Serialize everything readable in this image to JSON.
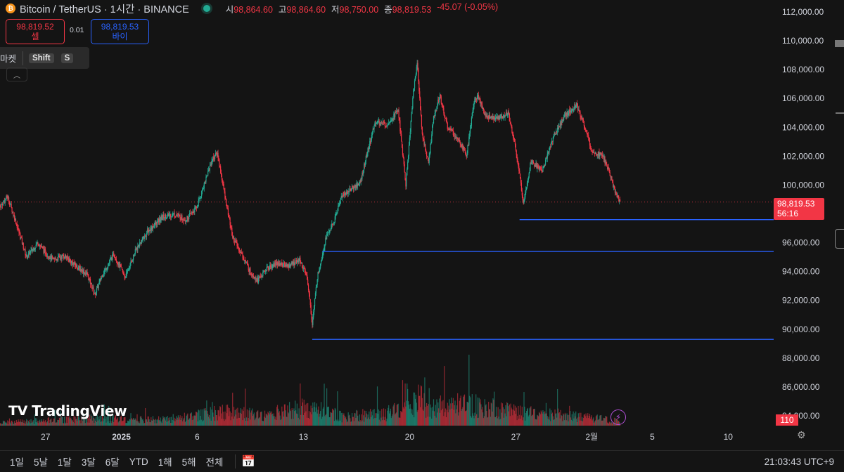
{
  "header": {
    "title": "Bitcoin / TetherUS · 1시간 · BINANCE",
    "coin_glyph": "₿",
    "ohlc": [
      {
        "label": "시",
        "value": "98,864.60"
      },
      {
        "label": "고",
        "value": "98,864.60"
      },
      {
        "label": "저",
        "value": "98,750.00"
      },
      {
        "label": "종",
        "value": "98,819.53"
      }
    ],
    "change": "-45.07 (-0.05%)",
    "status_color": "#22ab94"
  },
  "trade": {
    "sell_price": "98,819.52",
    "sell_label": "셀",
    "spread": "0.01",
    "buy_price": "98,819.53",
    "buy_label": "바이"
  },
  "tooltip": {
    "label": "마켓",
    "key1": "Shift",
    "key2": "S"
  },
  "collapse_icon": "chevron-up-icon",
  "logo": {
    "mark": "TV",
    "text": "TradingView"
  },
  "last_price_tag": {
    "price": "98,819.53",
    "countdown": "56:16"
  },
  "volume_tag": "110",
  "bottom_bar": {
    "ranges": [
      "1일",
      "5날",
      "1달",
      "3달",
      "6달",
      "YTD",
      "1해",
      "5해",
      "전체"
    ],
    "clock": "21:03:43 UTC+9"
  },
  "colors": {
    "up": "#22ab94",
    "down": "#f23645",
    "line": "#2962ff",
    "bg": "#141414"
  },
  "chart_data": {
    "type": "candlestick",
    "symbol": "BTCUSDT",
    "interval": "1시간",
    "ylim": [
      84000,
      113000
    ],
    "y_ticks": [
      84000,
      86000,
      88000,
      90000,
      92000,
      94000,
      96000,
      98000,
      100000,
      102000,
      104000,
      106000,
      108000,
      110000,
      112000
    ],
    "y_tick_labels": [
      "84,000.00",
      "86,000.00",
      "88,000.00",
      "90,000.00",
      "92,000.00",
      "94,000.00",
      "96,000.00",
      "98,000.00",
      "100,000.00",
      "102,000.00",
      "104,000.00",
      "106,000.00",
      "108,000.00",
      "110,000.00",
      "112,000.00"
    ],
    "x_ticks": [
      {
        "label": "27",
        "date": "2024-12-27"
      },
      {
        "label": "2025",
        "date": "2025-01-01"
      },
      {
        "label": "6",
        "date": "2025-01-06"
      },
      {
        "label": "13",
        "date": "2025-01-13"
      },
      {
        "label": "20",
        "date": "2025-01-20"
      },
      {
        "label": "27",
        "date": "2025-01-27"
      },
      {
        "label": "2월",
        "date": "2025-02-01"
      },
      {
        "label": "5",
        "date": "2025-02-05"
      },
      {
        "label": "10",
        "date": "2025-02-10"
      }
    ],
    "x_range": [
      "2024-12-24",
      "2025-02-13"
    ],
    "last_price": 98819.53,
    "price_path": [
      [
        "2024-12-24T00",
        98500
      ],
      [
        "2024-12-24T12",
        99200
      ],
      [
        "2024-12-25T00",
        97600
      ],
      [
        "2024-12-25T18",
        95000
      ],
      [
        "2024-12-26T12",
        96000
      ],
      [
        "2024-12-27T00",
        95300
      ],
      [
        "2024-12-27T12",
        94800
      ],
      [
        "2024-12-28T06",
        95100
      ],
      [
        "2024-12-29T00",
        94400
      ],
      [
        "2024-12-29T18",
        93800
      ],
      [
        "2024-12-30T06",
        92400
      ],
      [
        "2024-12-30T18",
        93800
      ],
      [
        "2024-12-31T12",
        95200
      ],
      [
        "2025-01-01T06",
        93600
      ],
      [
        "2025-01-02T00",
        95600
      ],
      [
        "2025-01-02T18",
        96800
      ],
      [
        "2025-01-03T18",
        97800
      ],
      [
        "2025-01-04T12",
        98000
      ],
      [
        "2025-01-05T06",
        97600
      ],
      [
        "2025-01-06T00",
        98500
      ],
      [
        "2025-01-06T14",
        100500
      ],
      [
        "2025-01-07T00",
        101800
      ],
      [
        "2025-01-07T08",
        102200
      ],
      [
        "2025-01-07T20",
        99200
      ],
      [
        "2025-01-08T08",
        96400
      ],
      [
        "2025-01-08T20",
        95400
      ],
      [
        "2025-01-09T12",
        94000
      ],
      [
        "2025-01-10T00",
        93400
      ],
      [
        "2025-01-10T14",
        94200
      ],
      [
        "2025-01-11T06",
        94600
      ],
      [
        "2025-01-12T00",
        94400
      ],
      [
        "2025-01-12T18",
        94800
      ],
      [
        "2025-01-13T06",
        93600
      ],
      [
        "2025-01-13T14",
        90400
      ],
      [
        "2025-01-13T22",
        93600
      ],
      [
        "2025-01-14T12",
        96400
      ],
      [
        "2025-01-15T00",
        97400
      ],
      [
        "2025-01-15T12",
        99200
      ],
      [
        "2025-01-16T00",
        99600
      ],
      [
        "2025-01-16T18",
        100200
      ],
      [
        "2025-01-17T06",
        102400
      ],
      [
        "2025-01-17T18",
        104400
      ],
      [
        "2025-01-18T12",
        104200
      ],
      [
        "2025-01-19T06",
        105200
      ],
      [
        "2025-01-19T18",
        100000
      ],
      [
        "2025-01-20T06",
        106500
      ],
      [
        "2025-01-20T12",
        108500
      ],
      [
        "2025-01-20T20",
        103500
      ],
      [
        "2025-01-21T06",
        101500
      ],
      [
        "2025-01-21T14",
        104800
      ],
      [
        "2025-01-22T00",
        106200
      ],
      [
        "2025-01-22T12",
        104000
      ],
      [
        "2025-01-23T06",
        103200
      ],
      [
        "2025-01-23T18",
        102000
      ],
      [
        "2025-01-24T06",
        105800
      ],
      [
        "2025-01-24T12",
        106200
      ],
      [
        "2025-01-25T00",
        104800
      ],
      [
        "2025-01-25T18",
        104600
      ],
      [
        "2025-01-26T12",
        105000
      ],
      [
        "2025-01-27T00",
        102500
      ],
      [
        "2025-01-27T12",
        98800
      ],
      [
        "2025-01-28T00",
        101600
      ],
      [
        "2025-01-28T18",
        101000
      ],
      [
        "2025-01-29T12",
        103400
      ],
      [
        "2025-01-30T06",
        104800
      ],
      [
        "2025-01-31T00",
        105600
      ],
      [
        "2025-01-31T12",
        104200
      ],
      [
        "2025-02-01T00",
        102400
      ],
      [
        "2025-02-01T18",
        102000
      ],
      [
        "2025-02-02T06",
        100600
      ],
      [
        "2025-02-02T14",
        99400
      ],
      [
        "2025-02-02T21",
        98820
      ]
    ],
    "volume_path": [
      [
        "2024-12-24T00",
        0.1
      ],
      [
        "2024-12-30T06",
        0.25
      ],
      [
        "2025-01-03T18",
        0.2
      ],
      [
        "2025-01-07T20",
        0.45
      ],
      [
        "2025-01-10T00",
        0.35
      ],
      [
        "2025-01-13T14",
        0.6
      ],
      [
        "2025-01-15T12",
        0.3
      ],
      [
        "2025-01-18T12",
        0.4
      ],
      [
        "2025-01-20T06",
        0.75
      ],
      [
        "2025-01-20T12",
        1.0
      ],
      [
        "2025-01-21T06",
        0.6
      ],
      [
        "2025-01-23T18",
        0.7
      ],
      [
        "2025-01-27T00",
        0.45
      ],
      [
        "2025-01-31T12",
        0.3
      ],
      [
        "2025-02-02T21",
        0.15
      ]
    ],
    "horizontal_lines": [
      {
        "price": 97600,
        "from": "2025-01-27T06",
        "to": "2025-02-13"
      },
      {
        "price": 95400,
        "from": "2025-01-14T06",
        "to": "2025-02-13"
      },
      {
        "price": 89300,
        "from": "2025-01-13T14",
        "to": "2025-02-13"
      }
    ]
  }
}
